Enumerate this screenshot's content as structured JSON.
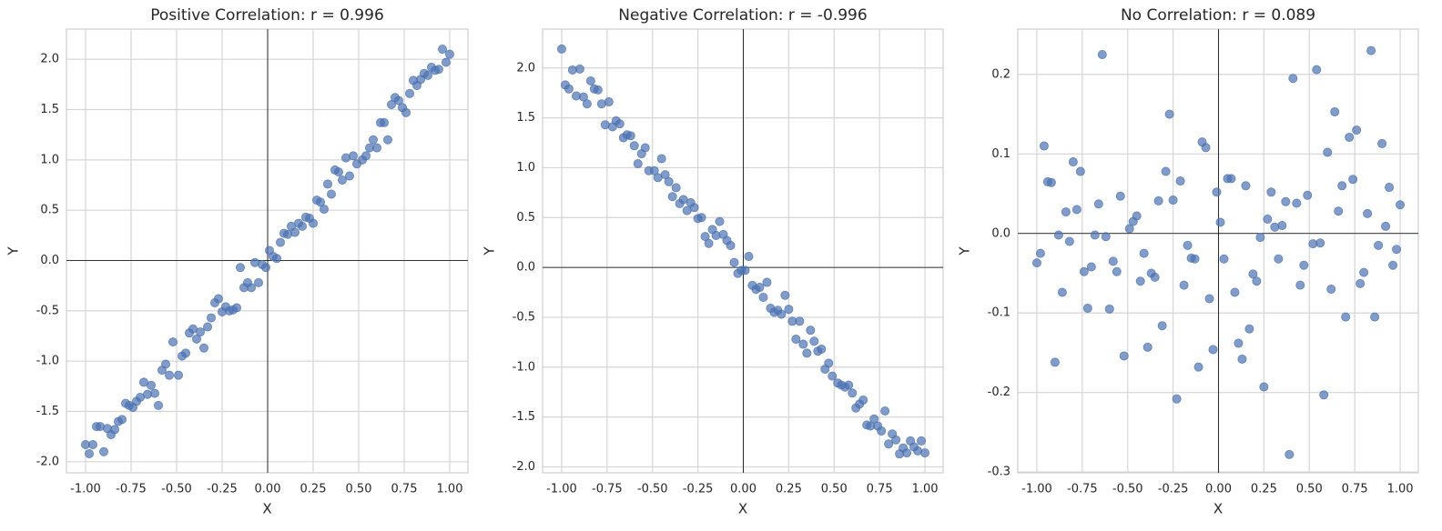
{
  "chart_data": [
    {
      "type": "scatter",
      "title": "Positive Correlation: r = 0.996",
      "xlabel": "X",
      "ylabel": "Y",
      "color": "#4c72b0",
      "grid": true,
      "hlines": [
        0
      ],
      "vlines": [
        0
      ],
      "xlim": [
        -1.105,
        1.1
      ],
      "ylim": [
        -2.11,
        2.3
      ],
      "xticks": [
        {
          "value": -1,
          "label": "-1.00"
        },
        {
          "value": -0.75,
          "label": "-0.75"
        },
        {
          "value": -0.5,
          "label": "-0.50"
        },
        {
          "value": -0.25,
          "label": "-0.25"
        },
        {
          "value": 0,
          "label": "0.00"
        },
        {
          "value": 0.25,
          "label": "0.25"
        },
        {
          "value": 0.5,
          "label": "0.50"
        },
        {
          "value": 0.75,
          "label": "0.75"
        },
        {
          "value": 1,
          "label": "1.00"
        }
      ],
      "yticks": [
        {
          "value": -2,
          "label": "-2.0"
        },
        -1.5,
        {
          "value": -1,
          "label": "-1.0"
        },
        -0.5,
        {
          "value": 0,
          "label": "0.0"
        },
        0.5,
        {
          "value": 1,
          "label": "1.0"
        },
        1.5,
        {
          "value": 2,
          "label": "2.0"
        }
      ],
      "x": [
        -1.0,
        -0.98,
        -0.96,
        -0.94,
        -0.92,
        -0.9,
        -0.88,
        -0.86,
        -0.84,
        -0.82,
        -0.8,
        -0.78,
        -0.76,
        -0.74,
        -0.72,
        -0.7,
        -0.68,
        -0.66,
        -0.64,
        -0.62,
        -0.6,
        -0.58,
        -0.56,
        -0.54,
        -0.52,
        -0.49,
        -0.47,
        -0.45,
        -0.43,
        -0.41,
        -0.39,
        -0.37,
        -0.35,
        -0.33,
        -0.31,
        -0.29,
        -0.27,
        -0.25,
        -0.23,
        -0.21,
        -0.19,
        -0.17,
        -0.15,
        -0.13,
        -0.11,
        -0.09,
        -0.07,
        -0.05,
        -0.03,
        -0.01,
        0.01,
        0.03,
        0.05,
        0.07,
        0.09,
        0.11,
        0.13,
        0.15,
        0.17,
        0.19,
        0.21,
        0.23,
        0.25,
        0.27,
        0.29,
        0.31,
        0.33,
        0.35,
        0.37,
        0.39,
        0.41,
        0.43,
        0.45,
        0.47,
        0.49,
        0.52,
        0.54,
        0.56,
        0.58,
        0.6,
        0.62,
        0.64,
        0.66,
        0.68,
        0.7,
        0.72,
        0.74,
        0.76,
        0.78,
        0.8,
        0.82,
        0.84,
        0.86,
        0.88,
        0.9,
        0.92,
        0.94,
        0.96,
        0.98,
        1.0
      ],
      "values": [
        -1.83,
        -1.92,
        -1.83,
        -1.65,
        -1.65,
        -1.9,
        -1.67,
        -1.73,
        -1.68,
        -1.6,
        -1.58,
        -1.42,
        -1.44,
        -1.46,
        -1.4,
        -1.36,
        -1.21,
        -1.33,
        -1.24,
        -1.32,
        -1.44,
        -1.09,
        -1.03,
        -1.14,
        -0.81,
        -1.14,
        -0.95,
        -0.92,
        -0.72,
        -0.68,
        -0.78,
        -0.71,
        -0.87,
        -0.66,
        -0.57,
        -0.42,
        -0.38,
        -0.51,
        -0.46,
        -0.5,
        -0.49,
        -0.47,
        -0.07,
        -0.27,
        -0.22,
        -0.27,
        -0.02,
        -0.22,
        -0.04,
        -0.07,
        0.1,
        0.04,
        0.02,
        0.18,
        0.27,
        0.26,
        0.34,
        0.28,
        0.37,
        0.34,
        0.43,
        0.42,
        0.37,
        0.6,
        0.58,
        0.51,
        0.76,
        0.66,
        0.9,
        0.88,
        0.8,
        1.02,
        0.84,
        1.04,
        0.96,
        1.0,
        1.04,
        1.12,
        1.2,
        1.12,
        1.37,
        1.37,
        1.2,
        1.55,
        1.62,
        1.59,
        1.52,
        1.47,
        1.66,
        1.79,
        1.74,
        1.8,
        1.86,
        1.84,
        1.92,
        1.89,
        1.9,
        2.1,
        1.97,
        2.05
      ]
    },
    {
      "type": "scatter",
      "title": "Negative Correlation: r = -0.996",
      "xlabel": "X",
      "ylabel": "Y",
      "color": "#4c72b0",
      "grid": true,
      "hlines": [
        0
      ],
      "vlines": [
        0
      ],
      "xlim": [
        -1.105,
        1.1
      ],
      "ylim": [
        -2.06,
        2.39
      ],
      "xticks": [
        {
          "value": -1,
          "label": "-1.00"
        },
        {
          "value": -0.75,
          "label": "-0.75"
        },
        {
          "value": -0.5,
          "label": "-0.50"
        },
        {
          "value": -0.25,
          "label": "-0.25"
        },
        {
          "value": 0,
          "label": "0.00"
        },
        {
          "value": 0.25,
          "label": "0.25"
        },
        {
          "value": 0.5,
          "label": "0.50"
        },
        {
          "value": 0.75,
          "label": "0.75"
        },
        {
          "value": 1,
          "label": "1.00"
        }
      ],
      "yticks": [
        {
          "value": -2,
          "label": "-2.0"
        },
        -1.5,
        {
          "value": -1,
          "label": "-1.0"
        },
        -0.5,
        {
          "value": 0,
          "label": "0.0"
        },
        0.5,
        {
          "value": 1,
          "label": "1.0"
        },
        1.5,
        {
          "value": 2,
          "label": "2.0"
        }
      ],
      "x": [
        -1.0,
        -0.98,
        -0.96,
        -0.94,
        -0.92,
        -0.9,
        -0.88,
        -0.86,
        -0.84,
        -0.82,
        -0.8,
        -0.78,
        -0.76,
        -0.74,
        -0.72,
        -0.7,
        -0.68,
        -0.66,
        -0.64,
        -0.62,
        -0.6,
        -0.58,
        -0.56,
        -0.54,
        -0.52,
        -0.49,
        -0.47,
        -0.45,
        -0.43,
        -0.41,
        -0.39,
        -0.37,
        -0.35,
        -0.33,
        -0.31,
        -0.29,
        -0.27,
        -0.25,
        -0.23,
        -0.21,
        -0.19,
        -0.17,
        -0.15,
        -0.13,
        -0.11,
        -0.09,
        -0.07,
        -0.05,
        -0.03,
        -0.01,
        0.01,
        0.03,
        0.05,
        0.07,
        0.09,
        0.11,
        0.13,
        0.15,
        0.17,
        0.19,
        0.21,
        0.23,
        0.25,
        0.27,
        0.29,
        0.31,
        0.33,
        0.35,
        0.37,
        0.39,
        0.41,
        0.43,
        0.45,
        0.47,
        0.49,
        0.52,
        0.54,
        0.56,
        0.58,
        0.6,
        0.62,
        0.64,
        0.66,
        0.68,
        0.7,
        0.72,
        0.74,
        0.76,
        0.78,
        0.8,
        0.82,
        0.84,
        0.86,
        0.88,
        0.9,
        0.92,
        0.94,
        0.96,
        0.98,
        1.0
      ],
      "values": [
        2.19,
        1.83,
        1.79,
        1.98,
        1.72,
        1.99,
        1.71,
        1.64,
        1.87,
        1.79,
        1.78,
        1.64,
        1.43,
        1.66,
        1.41,
        1.47,
        1.44,
        1.3,
        1.33,
        1.32,
        1.22,
        1.04,
        1.14,
        1.2,
        0.97,
        0.97,
        0.9,
        1.09,
        0.93,
        0.86,
        0.71,
        0.8,
        0.64,
        0.68,
        0.57,
        0.65,
        0.6,
        0.49,
        0.5,
        0.31,
        0.24,
        0.38,
        0.32,
        0.46,
        0.33,
        0.27,
        0.22,
        0.05,
        -0.06,
        -0.03,
        -0.03,
        0.11,
        -0.18,
        -0.22,
        -0.2,
        -0.3,
        -0.15,
        -0.41,
        -0.45,
        -0.43,
        -0.47,
        -0.28,
        -0.42,
        -0.54,
        -0.72,
        -0.54,
        -0.77,
        -0.86,
        -0.63,
        -0.74,
        -0.84,
        -0.82,
        -1.02,
        -0.96,
        -1.09,
        -1.16,
        -1.18,
        -1.2,
        -1.18,
        -1.26,
        -1.41,
        -1.37,
        -1.33,
        -1.58,
        -1.59,
        -1.52,
        -1.59,
        -1.64,
        -1.44,
        -1.77,
        -1.67,
        -1.73,
        -1.87,
        -1.81,
        -1.86,
        -1.74,
        -1.8,
        -1.84,
        -1.74,
        -1.86
      ]
    },
    {
      "type": "scatter",
      "title": "No Correlation: r = 0.089",
      "xlabel": "X",
      "ylabel": "Y",
      "color": "#4c72b0",
      "grid": true,
      "hlines": [
        0
      ],
      "vlines": [
        0
      ],
      "xlim": [
        -1.105,
        1.1
      ],
      "ylim": [
        -0.301,
        0.257
      ],
      "xticks": [
        {
          "value": -1,
          "label": "-1.00"
        },
        {
          "value": -0.75,
          "label": "-0.75"
        },
        {
          "value": -0.5,
          "label": "-0.50"
        },
        {
          "value": -0.25,
          "label": "-0.25"
        },
        {
          "value": 0,
          "label": "0.00"
        },
        {
          "value": 0.25,
          "label": "0.25"
        },
        {
          "value": 0.5,
          "label": "0.50"
        },
        {
          "value": 0.75,
          "label": "0.75"
        },
        {
          "value": 1,
          "label": "1.00"
        }
      ],
      "yticks": [
        -0.3,
        -0.2,
        -0.1,
        {
          "value": 0,
          "label": "0.0"
        },
        0.1,
        0.2
      ],
      "x": [
        -1.0,
        -0.98,
        -0.96,
        -0.94,
        -0.92,
        -0.9,
        -0.88,
        -0.86,
        -0.84,
        -0.82,
        -0.8,
        -0.78,
        -0.76,
        -0.74,
        -0.72,
        -0.7,
        -0.68,
        -0.66,
        -0.64,
        -0.62,
        -0.6,
        -0.58,
        -0.56,
        -0.54,
        -0.52,
        -0.49,
        -0.47,
        -0.45,
        -0.43,
        -0.41,
        -0.39,
        -0.37,
        -0.35,
        -0.33,
        -0.31,
        -0.29,
        -0.27,
        -0.25,
        -0.23,
        -0.21,
        -0.19,
        -0.17,
        -0.15,
        -0.13,
        -0.11,
        -0.09,
        -0.07,
        -0.05,
        -0.03,
        -0.01,
        0.01,
        0.03,
        0.05,
        0.07,
        0.09,
        0.11,
        0.13,
        0.15,
        0.17,
        0.19,
        0.21,
        0.23,
        0.25,
        0.27,
        0.29,
        0.31,
        0.33,
        0.35,
        0.37,
        0.39,
        0.41,
        0.43,
        0.45,
        0.47,
        0.49,
        0.52,
        0.54,
        0.56,
        0.58,
        0.6,
        0.62,
        0.64,
        0.66,
        0.68,
        0.7,
        0.72,
        0.74,
        0.76,
        0.78,
        0.8,
        0.82,
        0.84,
        0.86,
        0.88,
        0.9,
        0.92,
        0.94,
        0.96,
        0.98,
        1.0
      ],
      "values": [
        -0.037,
        -0.025,
        0.11,
        0.065,
        0.064,
        -0.162,
        -0.002,
        -0.074,
        0.027,
        -0.01,
        0.09,
        0.03,
        0.078,
        -0.048,
        -0.094,
        -0.042,
        -0.002,
        0.037,
        0.225,
        -0.004,
        -0.095,
        -0.035,
        -0.048,
        0.047,
        -0.154,
        0.006,
        0.015,
        0.022,
        -0.06,
        -0.025,
        -0.143,
        -0.05,
        -0.055,
        0.041,
        -0.116,
        0.078,
        0.15,
        0.042,
        -0.208,
        0.066,
        -0.065,
        -0.015,
        -0.031,
        -0.032,
        -0.168,
        0.115,
        0.108,
        -0.082,
        -0.146,
        0.052,
        0.014,
        -0.032,
        0.069,
        0.069,
        -0.074,
        -0.138,
        -0.158,
        0.06,
        -0.12,
        -0.051,
        -0.06,
        -0.005,
        -0.193,
        0.018,
        0.052,
        0.008,
        -0.032,
        0.01,
        0.04,
        -0.278,
        0.195,
        0.038,
        -0.065,
        -0.04,
        0.048,
        -0.013,
        0.206,
        -0.012,
        -0.203,
        0.102,
        -0.07,
        0.153,
        0.028,
        0.06,
        -0.105,
        0.121,
        0.068,
        0.13,
        -0.063,
        -0.049,
        0.025,
        0.23,
        -0.105,
        -0.015,
        0.113,
        0.009,
        0.058,
        -0.04,
        -0.02,
        0.036
      ]
    }
  ]
}
